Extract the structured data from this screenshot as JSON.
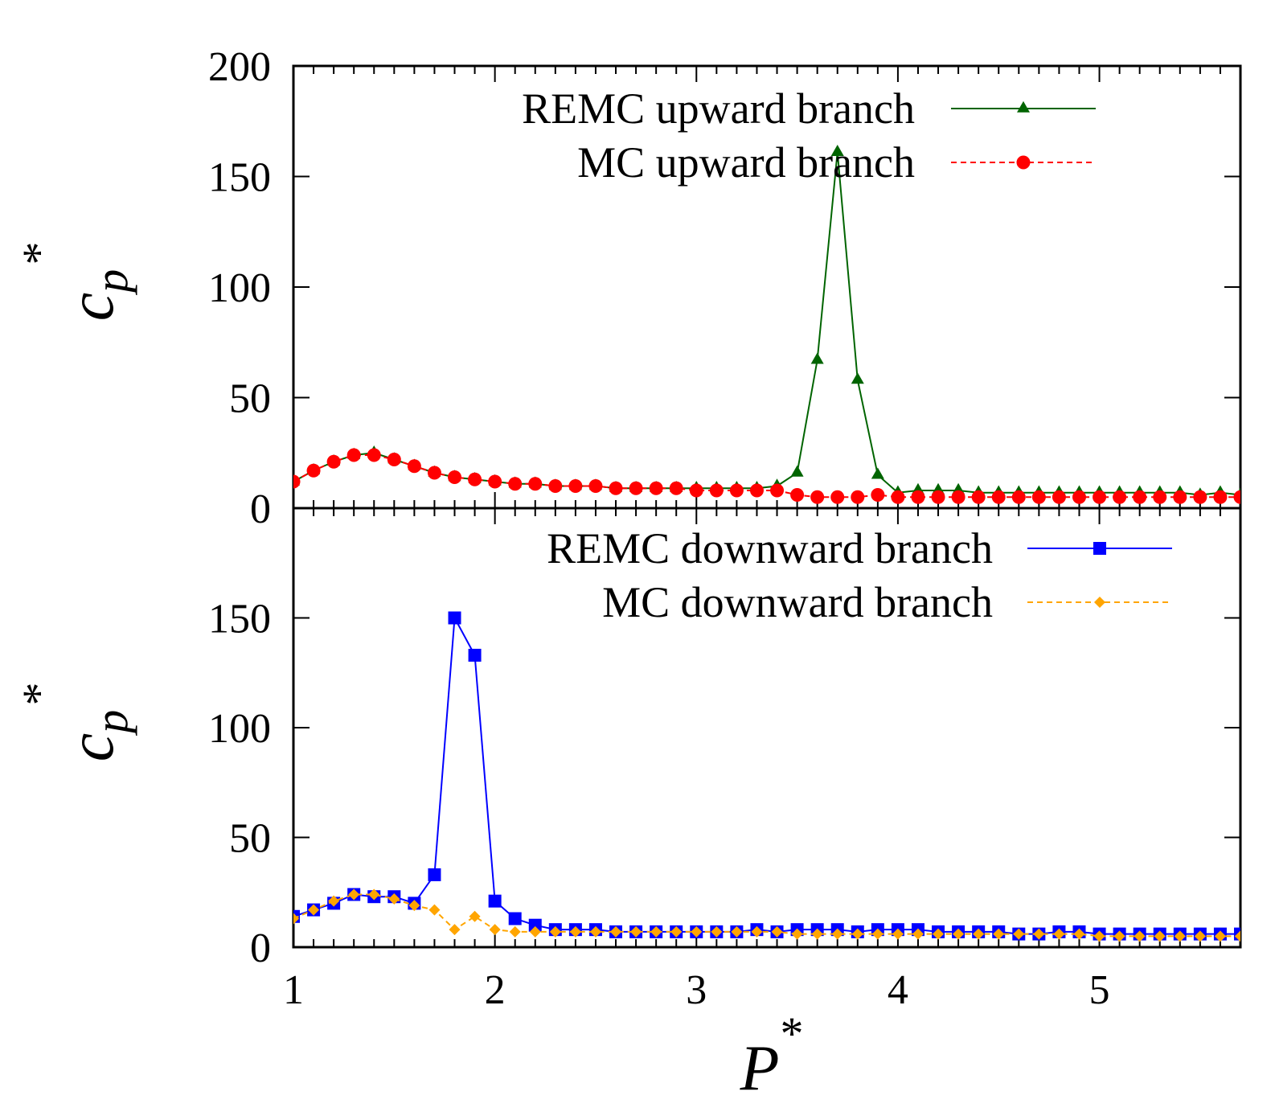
{
  "chart_data": [
    {
      "type": "line",
      "panel": "top",
      "xlim": [
        1,
        5.7
      ],
      "ylim": [
        0,
        200
      ],
      "yticks": [
        0,
        50,
        100,
        150,
        200
      ],
      "ylabel": {
        "base": "c",
        "sub": "p",
        "sup": "*"
      },
      "series": [
        {
          "name": "REMC upward branch",
          "color": "#006400",
          "marker": "triangle",
          "dashed": false,
          "x": [
            1.0,
            1.1,
            1.2,
            1.3,
            1.4,
            1.5,
            1.6,
            1.7,
            1.8,
            1.9,
            2.0,
            2.1,
            2.2,
            2.3,
            2.4,
            2.5,
            2.6,
            2.7,
            2.8,
            2.9,
            3.0,
            3.1,
            3.2,
            3.3,
            3.4,
            3.5,
            3.6,
            3.7,
            3.8,
            3.9,
            4.0,
            4.1,
            4.2,
            4.3,
            4.4,
            4.5,
            4.6,
            4.7,
            4.8,
            4.9,
            5.0,
            5.1,
            5.2,
            5.3,
            5.4,
            5.5,
            5.6,
            5.7
          ],
          "y": [
            12,
            17,
            21,
            24,
            25,
            22,
            19,
            16,
            14,
            13,
            12,
            11,
            11,
            10,
            10,
            10,
            9,
            9,
            9,
            9,
            9,
            9,
            9,
            9,
            10,
            16,
            67,
            161,
            58,
            15,
            7,
            8,
            8,
            8,
            7,
            7,
            7,
            7,
            7,
            7,
            7,
            7,
            7,
            7,
            7,
            6,
            7,
            6
          ]
        },
        {
          "name": "MC upward branch",
          "color": "#ff0000",
          "marker": "circle",
          "dashed": true,
          "x": [
            1.0,
            1.1,
            1.2,
            1.3,
            1.4,
            1.5,
            1.6,
            1.7,
            1.8,
            1.9,
            2.0,
            2.1,
            2.2,
            2.3,
            2.4,
            2.5,
            2.6,
            2.7,
            2.8,
            2.9,
            3.0,
            3.1,
            3.2,
            3.3,
            3.4,
            3.5,
            3.6,
            3.7,
            3.8,
            3.9,
            4.0,
            4.1,
            4.2,
            4.3,
            4.4,
            4.5,
            4.6,
            4.7,
            4.8,
            4.9,
            5.0,
            5.1,
            5.2,
            5.3,
            5.4,
            5.5,
            5.6,
            5.7
          ],
          "y": [
            12,
            17,
            21,
            24,
            24,
            22,
            19,
            16,
            14,
            13,
            12,
            11,
            11,
            10,
            10,
            10,
            9,
            9,
            9,
            9,
            8,
            8,
            8,
            8,
            8,
            6,
            5,
            5,
            5,
            6,
            5,
            5,
            5,
            5,
            5,
            5,
            5,
            5,
            5,
            5,
            5,
            5,
            5,
            5,
            5,
            5,
            5,
            5
          ]
        }
      ]
    },
    {
      "type": "line",
      "panel": "bottom",
      "xlim": [
        1,
        5.7
      ],
      "ylim": [
        0,
        200
      ],
      "yticks": [
        0,
        50,
        100,
        150
      ],
      "xticks": [
        1,
        2,
        3,
        4,
        5
      ],
      "ylabel": {
        "base": "c",
        "sub": "p",
        "sup": "*"
      },
      "xlabel": {
        "base": "P",
        "sup": "*"
      },
      "series": [
        {
          "name": "REMC downward branch",
          "color": "#0000ff",
          "marker": "square",
          "dashed": false,
          "x": [
            1.0,
            1.1,
            1.2,
            1.3,
            1.4,
            1.5,
            1.6,
            1.7,
            1.8,
            1.9,
            2.0,
            2.1,
            2.2,
            2.3,
            2.4,
            2.5,
            2.6,
            2.7,
            2.8,
            2.9,
            3.0,
            3.1,
            3.2,
            3.3,
            3.4,
            3.5,
            3.6,
            3.7,
            3.8,
            3.9,
            4.0,
            4.1,
            4.2,
            4.3,
            4.4,
            4.5,
            4.6,
            4.7,
            4.8,
            4.9,
            5.0,
            5.1,
            5.2,
            5.3,
            5.4,
            5.5,
            5.6,
            5.7
          ],
          "y": [
            14,
            17,
            20,
            24,
            23,
            23,
            20,
            33,
            150,
            133,
            21,
            13,
            10,
            8,
            8,
            8,
            7,
            7,
            7,
            7,
            7,
            7,
            7,
            8,
            7,
            8,
            8,
            8,
            7,
            8,
            8,
            8,
            7,
            7,
            7,
            7,
            6,
            6,
            7,
            7,
            6,
            6,
            6,
            6,
            6,
            6,
            6,
            6
          ]
        },
        {
          "name": "MC downward branch",
          "color": "#ffa500",
          "marker": "diamond",
          "dashed": true,
          "x": [
            1.0,
            1.1,
            1.2,
            1.3,
            1.4,
            1.5,
            1.6,
            1.7,
            1.8,
            1.9,
            2.0,
            2.1,
            2.2,
            2.3,
            2.4,
            2.5,
            2.6,
            2.7,
            2.8,
            2.9,
            3.0,
            3.1,
            3.2,
            3.3,
            3.4,
            3.5,
            3.6,
            3.7,
            3.8,
            3.9,
            4.0,
            4.1,
            4.2,
            4.3,
            4.4,
            4.5,
            4.6,
            4.7,
            4.8,
            4.9,
            5.0,
            5.1,
            5.2,
            5.3,
            5.4,
            5.5,
            5.6,
            5.7
          ],
          "y": [
            13,
            17,
            21,
            24,
            24,
            22,
            19,
            17,
            8,
            14,
            8,
            7,
            7,
            7,
            7,
            7,
            7,
            7,
            7,
            7,
            7,
            7,
            7,
            7,
            7,
            6,
            6,
            6,
            6,
            6,
            6,
            6,
            6,
            6,
            6,
            6,
            6,
            6,
            6,
            6,
            5,
            5,
            5,
            5,
            5,
            5,
            5,
            5
          ]
        }
      ]
    }
  ]
}
